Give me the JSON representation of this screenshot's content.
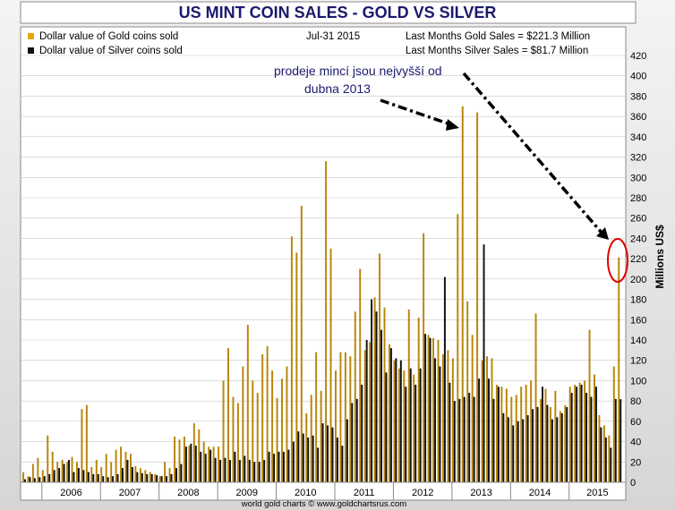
{
  "chart_data": {
    "type": "bar",
    "title": "US MINT COIN SALES - GOLD VS SILVER",
    "ylabel": "Millions US$",
    "ylim": [
      0,
      420
    ],
    "yticks": [
      0,
      20,
      40,
      60,
      80,
      100,
      120,
      140,
      160,
      180,
      200,
      220,
      240,
      260,
      280,
      300,
      320,
      340,
      360,
      380,
      400,
      420
    ],
    "years": [
      "2006",
      "2007",
      "2008",
      "2009",
      "2010",
      "2011",
      "2012",
      "2013",
      "2014",
      "2015"
    ],
    "start": "2005-09",
    "legend": {
      "gold_label": "Dollar value of Gold coins sold",
      "silver_label": "Dollar value of Silver coins sold",
      "date": "Jul-31  2015",
      "gold_last": "Last Months Gold Sales  = $221.3 Million",
      "silver_last": "Last Months Silver Sales = $81.7 Million"
    },
    "annotation": {
      "line1": "prodeje mincí jsou nejvyšší od",
      "line2": "dubna 2013"
    },
    "footer": "world gold charts © www.goldchartsrus.com",
    "colors": {
      "gold": "#b8860b",
      "silver": "#111111",
      "annotation": "#1a1a6e",
      "circle": "#e00000"
    },
    "series": [
      {
        "name": "Dollar value of Gold coins sold",
        "values": [
          10,
          6,
          18,
          24,
          12,
          46,
          30,
          20,
          22,
          20,
          25,
          20,
          72,
          76,
          15,
          22,
          15,
          28,
          20,
          32,
          35,
          30,
          28,
          16,
          14,
          12,
          10,
          8,
          6,
          20,
          14,
          45,
          42,
          45,
          36,
          58,
          52,
          40,
          35,
          35,
          35,
          100,
          132,
          84,
          78,
          114,
          155,
          100,
          88,
          126,
          134,
          110,
          83,
          102,
          114,
          242,
          226,
          272,
          68,
          86,
          128,
          90,
          316,
          230,
          110,
          128,
          128,
          124,
          168,
          210,
          130,
          138,
          182,
          225,
          172,
          136,
          120,
          112,
          110,
          170,
          106,
          162,
          245,
          145,
          142,
          140,
          126,
          130,
          122,
          264,
          370,
          178,
          145,
          364,
          120,
          124,
          122,
          96,
          94,
          92,
          84,
          86,
          94,
          96,
          100,
          166,
          82,
          92,
          74,
          90,
          70,
          76,
          94,
          96,
          98,
          100,
          150,
          106,
          66,
          56,
          46,
          114,
          221.3
        ],
        "color": "#b8860b"
      },
      {
        "name": "Dollar value of Silver coins sold",
        "values": [
          3,
          5,
          4,
          5,
          6,
          8,
          12,
          14,
          18,
          22,
          10,
          14,
          12,
          10,
          8,
          8,
          6,
          5,
          6,
          8,
          14,
          22,
          15,
          10,
          9,
          8,
          8,
          7,
          6,
          6,
          8,
          14,
          18,
          35,
          38,
          36,
          30,
          28,
          32,
          24,
          22,
          24,
          22,
          30,
          22,
          26,
          22,
          20,
          20,
          22,
          30,
          28,
          30,
          30,
          32,
          40,
          50,
          48,
          44,
          46,
          34,
          58,
          56,
          54,
          44,
          36,
          62,
          78,
          82,
          96,
          140,
          180,
          168,
          150,
          108,
          132,
          122,
          120,
          94,
          112,
          96,
          112,
          146,
          142,
          122,
          114,
          202,
          98,
          80,
          82,
          84,
          88,
          84,
          102,
          234,
          102,
          82,
          94,
          68,
          64,
          56,
          60,
          62,
          66,
          72,
          74,
          94,
          76,
          62,
          64,
          68,
          74,
          88,
          94,
          96,
          88,
          84,
          94,
          54,
          44,
          34,
          82,
          81.7
        ],
        "color": "#111111"
      }
    ]
  }
}
